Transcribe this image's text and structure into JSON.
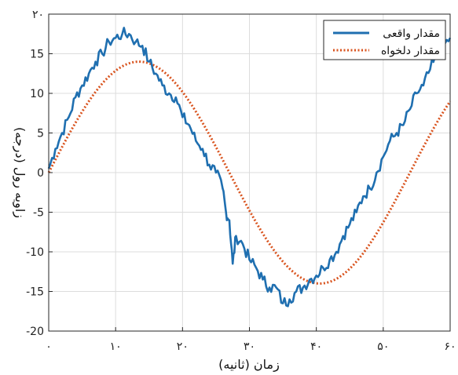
{
  "chart_data": {
    "type": "line",
    "xlabel": "زمان (ثانیه)",
    "ylabel": "زاویه رول (درجه)",
    "xlim": [
      0,
      60
    ],
    "ylim": [
      -20,
      20
    ],
    "grid": true,
    "legend_placement": "top-right",
    "x_ticks": [
      0,
      10,
      20,
      30,
      40,
      50,
      60
    ],
    "x_tick_labels": [
      "۰",
      "۱۰",
      "۲۰",
      "۳۰",
      "۴۰",
      "۵۰",
      "۶۰"
    ],
    "y_ticks": [
      20,
      15,
      10,
      5,
      0,
      -5,
      -10,
      -15,
      -20
    ],
    "y_tick_labels": [
      "۲۰",
      "15",
      "10",
      "5",
      "0",
      "-5",
      "-10",
      "-15",
      "-20"
    ],
    "series": [
      {
        "name": "مقدار واقعی",
        "color": "#1f6fb0",
        "style": "solid",
        "x": [
          0,
          1,
          2,
          3,
          4,
          5,
          6,
          7,
          8,
          9,
          10,
          11,
          12,
          13,
          14,
          15,
          16,
          17,
          18,
          19,
          20,
          21,
          22,
          23,
          24,
          25,
          26,
          26.5,
          27,
          27.5,
          28,
          29,
          30,
          31,
          32,
          33,
          34,
          35,
          36,
          37,
          38,
          39,
          40,
          41,
          42,
          43,
          44,
          45,
          46,
          47,
          48,
          49,
          50,
          51,
          52,
          53,
          54,
          55,
          56,
          57,
          58,
          59,
          60
        ],
        "y": [
          0.5,
          3,
          5,
          7,
          9.5,
          11,
          12.5,
          14,
          15,
          16.5,
          17,
          17.5,
          17.5,
          16.5,
          16,
          14,
          12.5,
          11,
          10,
          9.5,
          7,
          6,
          4,
          3,
          1,
          0,
          -2,
          -5,
          -6,
          -11.5,
          -8,
          -9,
          -11,
          -12,
          -13.5,
          -14.5,
          -14.5,
          -16.5,
          -16,
          -15,
          -14.5,
          -13.5,
          -13,
          -12,
          -11,
          -10,
          -8,
          -6.5,
          -5,
          -3,
          -2,
          0,
          2,
          4,
          5,
          6,
          8,
          10,
          11,
          13,
          14.5,
          16,
          17
        ]
      },
      {
        "name": "مقدار دلخواه",
        "color": "#d9541f",
        "style": "dotted",
        "function": "14 * sin(2*pi*x/54)"
      }
    ]
  }
}
